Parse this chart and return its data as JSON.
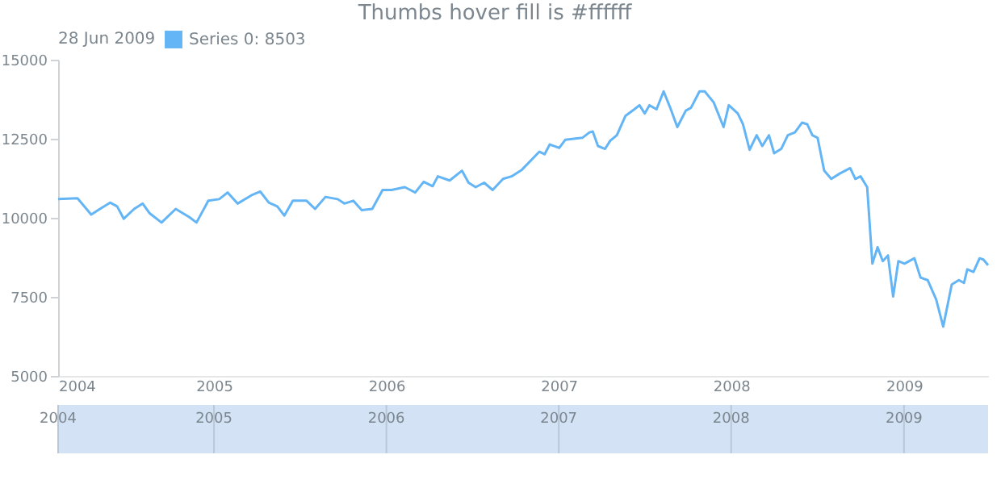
{
  "chart_data": {
    "type": "line",
    "title": "Thumbs hover fill is #ffffff",
    "legend_title": "28 Jun 2009",
    "legend": "top left",
    "grid": false,
    "marker": "none",
    "line_style": "solid",
    "xlim": [
      "2004-02-06",
      "2009-06-28"
    ],
    "xticks": [
      {
        "value": "2004-02-06",
        "label": "2004"
      },
      "2005",
      "2006",
      "2007",
      "2008",
      "2009"
    ],
    "x2lim": [
      "2004-02-06",
      "2009-06-28"
    ],
    "x2ticks": [
      {
        "value": "2004-02-06",
        "label": "2004"
      },
      "2005",
      "2006",
      "2007",
      "2008",
      "2009"
    ],
    "ylim": [
      5000,
      15000
    ],
    "yticks": [
      5000,
      7500,
      10000,
      12500,
      15000
    ],
    "series": [
      {
        "name": "Series 0: 8503",
        "color": "#64b5f6",
        "x": [
          "2004-02-06",
          "2004-03-18",
          "2004-04-16",
          "2004-05-08",
          "2004-05-26",
          "2004-06-10",
          "2004-06-24",
          "2004-07-16",
          "2004-08-03",
          "2004-08-18",
          "2004-09-12",
          "2004-10-12",
          "2004-11-10",
          "2004-11-25",
          "2004-12-20",
          "2005-01-12",
          "2005-01-30",
          "2005-02-20",
          "2005-03-21",
          "2005-04-09",
          "2005-04-27",
          "2005-05-15",
          "2005-05-30",
          "2005-06-17",
          "2005-07-16",
          "2005-08-03",
          "2005-08-25",
          "2005-09-20",
          "2005-10-04",
          "2005-10-23",
          "2005-11-10",
          "2005-12-02",
          "2005-12-24",
          "2006-01-12",
          "2006-02-09",
          "2006-03-03",
          "2006-03-21",
          "2006-04-09",
          "2006-04-20",
          "2006-05-15",
          "2006-06-10",
          "2006-06-24",
          "2006-07-09",
          "2006-07-27",
          "2006-08-14",
          "2006-09-05",
          "2006-09-23",
          "2006-10-15",
          "2006-11-21",
          "2006-12-02",
          "2006-12-13",
          "2007-01-02",
          "2007-01-15",
          "2007-02-20",
          "2007-03-07",
          "2007-03-14",
          "2007-03-25",
          "2007-04-09",
          "2007-04-20",
          "2007-05-04",
          "2007-05-22",
          "2007-06-10",
          "2007-06-21",
          "2007-07-02",
          "2007-07-12",
          "2007-07-27",
          "2007-08-11",
          "2007-08-25",
          "2007-09-09",
          "2007-09-27",
          "2007-10-08",
          "2007-10-26",
          "2007-11-06",
          "2007-11-25",
          "2007-12-16",
          "2007-12-27",
          "2008-01-15",
          "2008-01-26",
          "2008-02-09",
          "2008-02-24",
          "2008-03-07",
          "2008-03-21",
          "2008-04-01",
          "2008-04-16",
          "2008-04-30",
          "2008-05-15",
          "2008-05-30",
          "2008-06-10",
          "2008-06-21",
          "2008-07-02",
          "2008-07-16",
          "2008-07-31",
          "2008-08-18",
          "2008-09-09",
          "2008-09-20",
          "2008-10-01",
          "2008-10-15",
          "2008-10-26",
          "2008-11-06",
          "2008-11-17",
          "2008-11-28",
          "2008-12-09",
          "2008-12-20",
          "2009-01-02",
          "2009-01-23",
          "2009-02-05",
          "2009-02-20",
          "2009-03-10",
          "2009-03-25",
          "2009-04-12",
          "2009-04-27",
          "2009-05-08",
          "2009-05-15",
          "2009-05-28",
          "2009-06-10",
          "2009-06-18",
          "2009-06-28"
        ],
        "values": [
          10590,
          10620,
          10100,
          10310,
          10480,
          10360,
          9970,
          10280,
          10450,
          10140,
          9850,
          10280,
          10020,
          9850,
          10540,
          10590,
          10800,
          10450,
          10710,
          10830,
          10480,
          10360,
          10070,
          10540,
          10540,
          10280,
          10660,
          10590,
          10450,
          10540,
          10240,
          10280,
          10880,
          10880,
          10970,
          10800,
          11140,
          11000,
          11310,
          11180,
          11490,
          11110,
          10970,
          11110,
          10880,
          11230,
          11310,
          11520,
          12090,
          12010,
          12320,
          12210,
          12470,
          12530,
          12700,
          12730,
          12270,
          12180,
          12440,
          12610,
          13220,
          13430,
          13560,
          13300,
          13560,
          13430,
          14000,
          13480,
          12870,
          13390,
          13480,
          14000,
          14000,
          13650,
          12870,
          13560,
          13300,
          12960,
          12150,
          12610,
          12270,
          12610,
          12040,
          12180,
          12610,
          12700,
          13010,
          12960,
          12610,
          12530,
          11490,
          11230,
          11400,
          11570,
          11230,
          11310,
          10970,
          8550,
          9070,
          8630,
          8810,
          7510,
          8630,
          8550,
          8720,
          8110,
          8030,
          7420,
          6560,
          7890,
          8030,
          7940,
          8370,
          8290,
          8720,
          8680,
          8503
        ]
      }
    ]
  }
}
